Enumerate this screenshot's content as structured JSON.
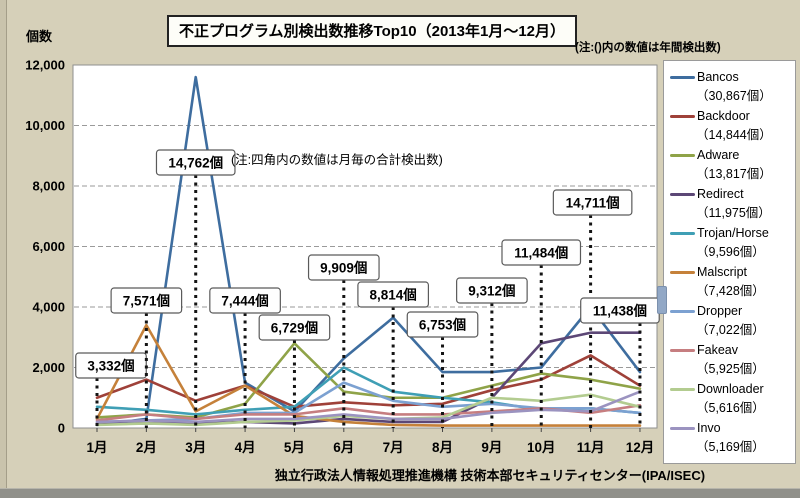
{
  "page": {
    "title": "不正プログラム別検出数推移Top10（2013年1月～12月）",
    "top_note": "(注:()内の数値は年間検出数)",
    "y_axis_label": "個数",
    "inner_note": "(注:四角内の数値は月毎の合計検出数)",
    "footer": "独立行政法人情報処理推進機構 技術本部セキュリティセンター(IPA/ISEC)"
  },
  "chart_data": {
    "type": "line",
    "title": "不正プログラム別検出数推移Top10（2013年1月～12月）",
    "xlabel": "",
    "ylabel": "個数",
    "ylim": [
      0,
      12000
    ],
    "y_ticks": [
      "0",
      "2,000",
      "4,000",
      "6,000",
      "8,000",
      "10,000",
      "12,000"
    ],
    "grid": "horizontal-dashed",
    "legend_position": "right",
    "categories": [
      "1月",
      "2月",
      "3月",
      "4月",
      "5月",
      "6月",
      "7月",
      "8月",
      "9月",
      "10月",
      "11月",
      "12月"
    ],
    "series": [
      {
        "name": "Bancos",
        "annual_label": "（30,867個）",
        "annual_total": 30867,
        "color": "#3e6d9f",
        "values": [
          100,
          300,
          11600,
          1500,
          550,
          2300,
          3650,
          1850,
          1850,
          2000,
          4000,
          1850
        ]
      },
      {
        "name": "Backdoor",
        "annual_label": "（14,844個）",
        "annual_total": 14844,
        "color": "#9f4139",
        "values": [
          1000,
          1600,
          900,
          1400,
          700,
          850,
          750,
          800,
          1250,
          1600,
          2400,
          1400
        ]
      },
      {
        "name": "Adware",
        "annual_label": "（13,817個）",
        "annual_total": 13817,
        "color": "#8fa348",
        "values": [
          350,
          450,
          350,
          800,
          2800,
          1200,
          1000,
          1000,
          1400,
          1800,
          1600,
          1300
        ]
      },
      {
        "name": "Redirect",
        "annual_label": "（11,975個）",
        "annual_total": 11975,
        "color": "#5c4776",
        "values": [
          150,
          150,
          150,
          200,
          150,
          300,
          200,
          200,
          1000,
          2800,
          3150,
          3150
        ]
      },
      {
        "name": "Trojan/Horse",
        "annual_label": "（9,596個）",
        "annual_total": 9596,
        "color": "#3f9fb5",
        "values": [
          700,
          600,
          450,
          600,
          700,
          2000,
          1200,
          1000,
          850,
          600,
          650,
          500
        ]
      },
      {
        "name": "Malscript",
        "annual_label": "（7,428個）",
        "annual_total": 7428,
        "color": "#c5813a",
        "values": [
          300,
          3400,
          550,
          1400,
          400,
          200,
          100,
          80,
          80,
          80,
          80,
          80
        ]
      },
      {
        "name": "Dropper",
        "annual_label": "（7,022個）",
        "annual_total": 7022,
        "color": "#7ca1d1",
        "values": [
          200,
          250,
          300,
          500,
          500,
          1500,
          900,
          700,
          800,
          650,
          650,
          500
        ]
      },
      {
        "name": "Fakeav",
        "annual_label": "（5,925個）",
        "annual_total": 5925,
        "color": "#c67e80",
        "values": [
          250,
          450,
          300,
          450,
          450,
          650,
          450,
          450,
          550,
          650,
          500,
          750
        ]
      },
      {
        "name": "Downloader",
        "annual_label": "（5,616個）",
        "annual_total": 5616,
        "color": "#b3cc90",
        "values": [
          100,
          150,
          100,
          200,
          250,
          400,
          300,
          350,
          1000,
          900,
          1100,
          700
        ]
      },
      {
        "name": "Invo",
        "annual_label": "（5,169個）",
        "annual_total": 5169,
        "color": "#9b93c0",
        "values": [
          200,
          250,
          200,
          300,
          300,
          450,
          300,
          300,
          500,
          600,
          550,
          1200
        ]
      }
    ],
    "annotations": [
      {
        "month": 1,
        "label": "3,332個",
        "total": 3332,
        "box_top": 295,
        "dx": 14
      },
      {
        "month": 2,
        "label": "7,571個",
        "total": 7571,
        "box_top": 230,
        "dx": 0
      },
      {
        "month": 3,
        "label": "14,762個",
        "total": 14762,
        "box_top": 92,
        "dx": 0
      },
      {
        "month": 4,
        "label": "7,444個",
        "total": 7444,
        "box_top": 230,
        "dx": 0
      },
      {
        "month": 5,
        "label": "6,729個",
        "total": 6729,
        "box_top": 257,
        "dx": 0
      },
      {
        "month": 6,
        "label": "9,909個",
        "total": 9909,
        "box_top": 197,
        "dx": 0
      },
      {
        "month": 7,
        "label": "8,814個",
        "total": 8814,
        "box_top": 224,
        "dx": 0
      },
      {
        "month": 8,
        "label": "6,753個",
        "total": 6753,
        "box_top": 254,
        "dx": 0
      },
      {
        "month": 9,
        "label": "9,312個",
        "total": 9312,
        "box_top": 220,
        "dx": 0
      },
      {
        "month": 10,
        "label": "11,484個",
        "total": 11484,
        "box_top": 182,
        "dx": 0
      },
      {
        "month": 11,
        "label": "14,711個",
        "total": 14711,
        "box_top": 132,
        "dx": 2
      },
      {
        "month": 12,
        "label": "11,438個",
        "total": 11438,
        "box_top": 240,
        "dx": -20
      }
    ]
  }
}
